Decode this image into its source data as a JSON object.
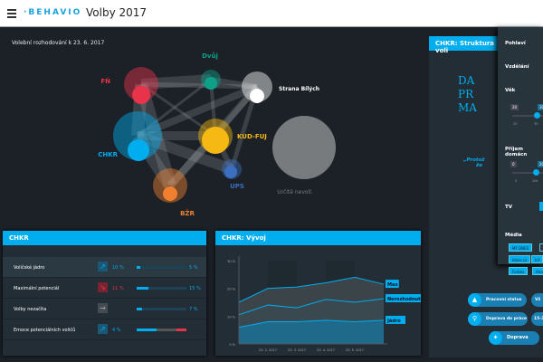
{
  "header": {
    "logo": "·BEHAVIO",
    "title": "Volby 2017"
  },
  "subtitle": "Volební rozhodování k 23. 6. 2017",
  "network": {
    "nodes": [
      {
        "label": "FŇ",
        "color": "#e8334b"
      },
      {
        "label": "Dvůj",
        "color": "#0fa08a"
      },
      {
        "label": "Strana Bílých",
        "color": "#ffffff"
      },
      {
        "label": "CHKR",
        "color": "#00adee"
      },
      {
        "label": "KUD-FUJ",
        "color": "#f6b914"
      },
      {
        "label": "UPS",
        "color": "#3c6fc0"
      },
      {
        "label": "BŽR",
        "color": "#f08030"
      },
      {
        "label": "Určitě nevolí.",
        "color": "#777b7e"
      }
    ]
  },
  "chkr_panel": {
    "title": "CHKR",
    "rows": [
      {
        "label": "Voličské jádro",
        "trend": "up",
        "change": "10 %",
        "value": "5 %",
        "fill": 0.05
      },
      {
        "label": "Maximální potenciál",
        "trend": "down",
        "change": "11 %",
        "value": "15 %",
        "fill": 0.15
      },
      {
        "label": "Volby nezačíta",
        "trend": "flat",
        "change": "",
        "value": "7 %",
        "fill": 0.07
      },
      {
        "label": "Emoce potenciálních voličů",
        "trend": "up",
        "change": "4 %",
        "value": "",
        "fill": 0
      }
    ]
  },
  "vyvoj_panel": {
    "title": "CHKR: Vývoj"
  },
  "chart_data": {
    "type": "area",
    "x": [
      "",
      "23. 2. 2017",
      "23. 3. 2017",
      "23. 4. 2017",
      "23. 5. 2017",
      ""
    ],
    "yticks": [
      "0 %",
      "10 %",
      "20 %",
      "30 %"
    ],
    "ylim": [
      0,
      30
    ],
    "series": [
      {
        "name": "Max",
        "values": [
          15,
          20,
          20.5,
          22,
          24,
          21.5
        ]
      },
      {
        "name": "Nerozhodnuto",
        "values": [
          10.5,
          14,
          13,
          16,
          15,
          16.3
        ]
      },
      {
        "name": "Jádro",
        "values": [
          6,
          8,
          8,
          8.5,
          8,
          8.5
        ]
      }
    ]
  },
  "right_panel": {
    "title": "CHKR: Struktura voli",
    "big": [
      "DA",
      "PR",
      "MA"
    ],
    "quote": "„Protož",
    "quote2": "že"
  },
  "filter": {
    "sections": [
      "Pohlaví",
      "Vzdělání",
      "Věk",
      "Příjem domácn",
      "TV",
      "Média"
    ],
    "age": {
      "min": "20",
      "max": "30",
      "tick_a": "20",
      "tick_b": "30"
    },
    "income": {
      "min": "0",
      "max": "20",
      "tick_a": "0",
      "tick_b": "20k"
    },
    "media": [
      "MF DNES",
      "",
      "Idnes.cz",
      "Inf",
      "Forbes",
      "Aha"
    ]
  },
  "pills": [
    "Pracovní status",
    "Vš",
    "Doprava do práce",
    "15-30",
    "Doprava"
  ],
  "colors": {
    "accent": "#00adee",
    "down": "#e8334b"
  }
}
